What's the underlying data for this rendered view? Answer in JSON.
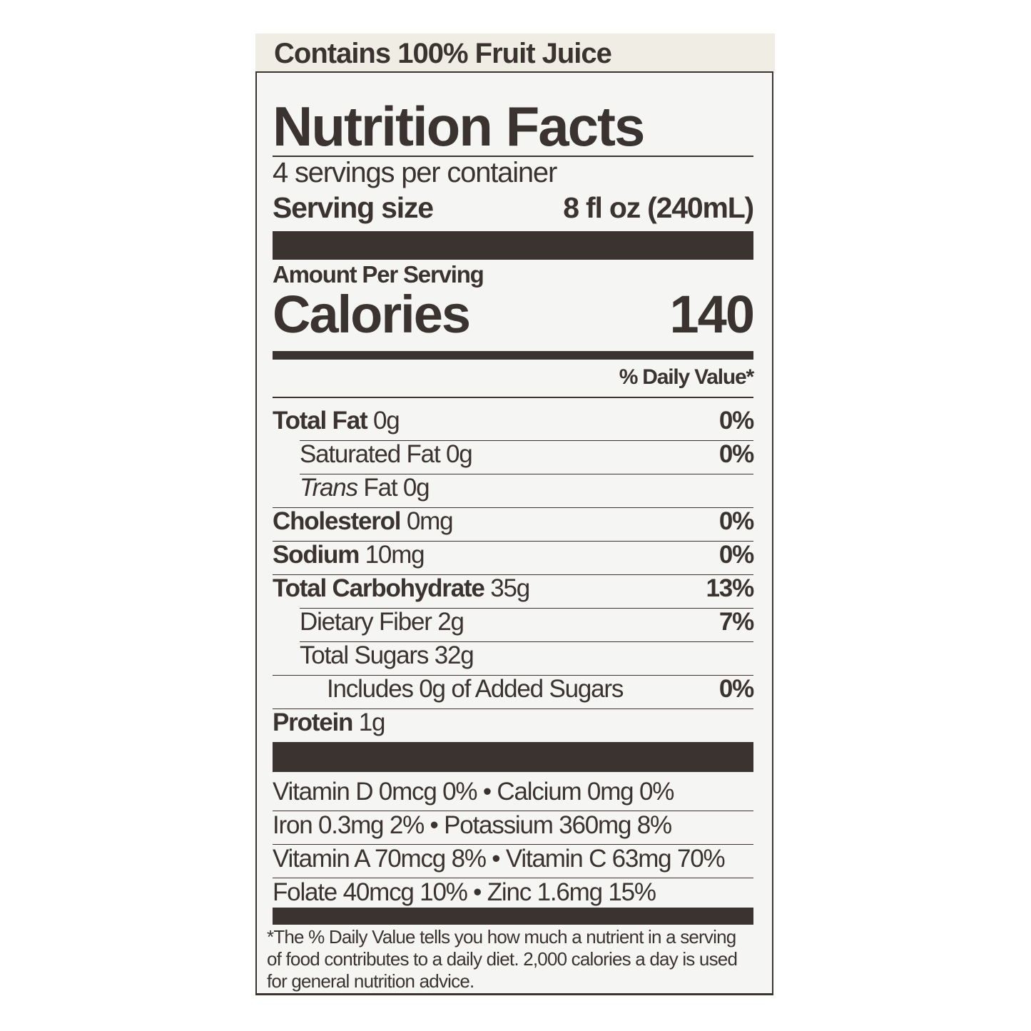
{
  "banner": "Contains 100% Fruit Juice",
  "title": "Nutrition Facts",
  "servings_per_container": "4 servings per container",
  "serving_size_label": "Serving size",
  "serving_size_value": "8 fl oz (240mL)",
  "amount_per_serving": "Amount Per Serving",
  "calories_label": "Calories",
  "calories_value": "140",
  "daily_value_header": "% Daily Value*",
  "nutrients": [
    {
      "name": "Total Fat",
      "amount": "0g",
      "dv": "0%"
    },
    {
      "name": "Saturated Fat",
      "amount": "0g",
      "dv": "0%"
    },
    {
      "name": "Trans",
      "amount": "Fat 0g",
      "dv": ""
    },
    {
      "name": "Cholesterol",
      "amount": "0mg",
      "dv": "0%"
    },
    {
      "name": "Sodium",
      "amount": "10mg",
      "dv": "0%"
    },
    {
      "name": "Total Carbohydrate",
      "amount": "35g",
      "dv": "13%"
    },
    {
      "name": "Dietary Fiber",
      "amount": "2g",
      "dv": "7%"
    },
    {
      "name": "Total Sugars",
      "amount": "32g",
      "dv": ""
    },
    {
      "name": "Includes 0g of Added Sugars",
      "amount": "",
      "dv": "0%"
    },
    {
      "name": "Protein",
      "amount": "1g",
      "dv": ""
    }
  ],
  "vitamins": [
    "Vitamin D 0mcg 0% • Calcium 0mg 0%",
    "Iron 0.3mg 2% • Potassium 360mg 8%",
    "Vitamin A 70mcg 8% • Vitamin C 63mg 70%",
    "Folate 40mcg 10% • Zinc 1.6mg 15%"
  ],
  "footnote": "*The % Daily Value tells you how much a nutrient in a serving of food contributes to a daily diet. 2,000 calories a day is used for general nutrition advice."
}
